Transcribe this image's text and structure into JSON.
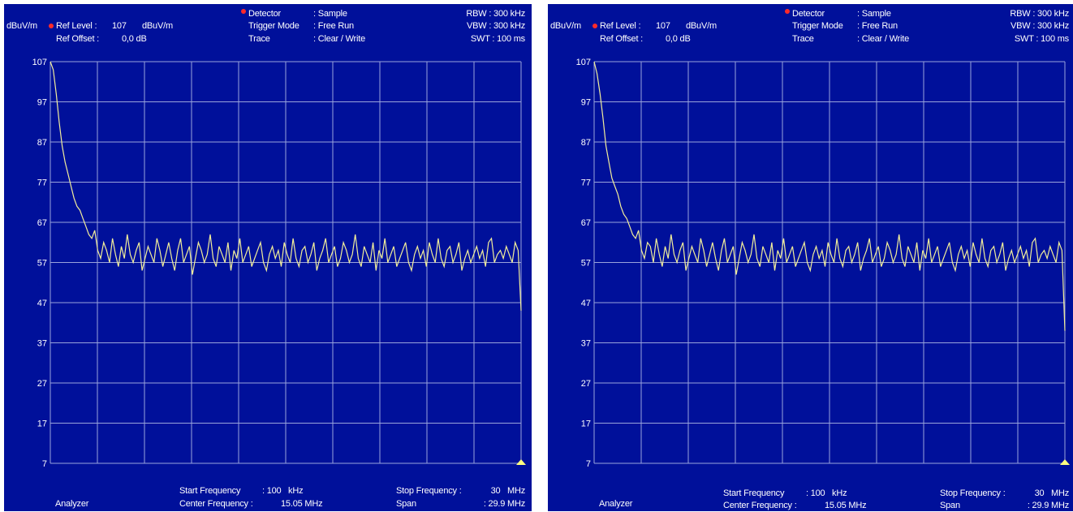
{
  "colors": {
    "background": "#00109a",
    "grid": "#9aa3dc",
    "trace": "#f2ee9a",
    "text": "#ffffff",
    "marker": "#ff2a2a",
    "triangle": "#ffff80"
  },
  "panels": [
    {
      "unit": "dBuV/m",
      "ref_level_label": "Ref Level :",
      "ref_level_value": "107",
      "ref_level_unit": "dBuV/m",
      "ref_offset_label": "Ref Offset :",
      "ref_offset_value": "0,0 dB",
      "detector_label": "Detector",
      "detector_value": ": Sample",
      "trigger_label": "Trigger Mode",
      "trigger_value": ": Free Run",
      "trace_label": "Trace",
      "trace_value": ": Clear / Write",
      "rbw": "RBW : 300 kHz",
      "vbw": "VBW : 300 kHz",
      "swt": "SWT : 100 ms",
      "analyzer": "Analyzer",
      "start_freq_label": "Start Frequency",
      "start_freq_value": ": 100   kHz",
      "center_freq_label": "Center Frequency :",
      "center_freq_value": "15.05 MHz",
      "stop_freq_label": "Stop Frequency :",
      "stop_freq_value": "30   MHz",
      "span_label": "Span",
      "span_value": ": 29.9 MHz"
    },
    {
      "unit": "dBuV/m",
      "ref_level_label": "Ref Level :",
      "ref_level_value": "107",
      "ref_level_unit": "dBuV/m",
      "ref_offset_label": "Ref Offset :",
      "ref_offset_value": "0,0 dB",
      "detector_label": "Detector",
      "detector_value": ": Sample",
      "trigger_label": "Trigger Mode",
      "trigger_value": ": Free Run",
      "trace_label": "Trace",
      "trace_value": ": Clear / Write",
      "rbw": "RBW : 300 kHz",
      "vbw": "VBW : 300 kHz",
      "swt": "SWT : 100 ms",
      "analyzer": "Analyzer",
      "start_freq_label": "Start Frequency",
      "start_freq_value": ": 100   kHz",
      "center_freq_label": "Center Frequency :",
      "center_freq_value": "15.05 MHz",
      "stop_freq_label": "Stop Frequency :",
      "stop_freq_value": "30   MHz",
      "span_label": "Span",
      "span_value": ": 29.9 MHz"
    }
  ],
  "chart_data": [
    {
      "type": "line",
      "ylim": [
        7,
        107
      ],
      "xlim": [
        0.1,
        30
      ],
      "x_unit": "MHz",
      "y_ticks": [
        "107",
        "97",
        "87",
        "77",
        "67",
        "57",
        "47",
        "37",
        "27",
        "17",
        "7"
      ],
      "grid": true,
      "series": [
        {
          "values": [
            107,
            105,
            99,
            92,
            86,
            82,
            79,
            76,
            73,
            71,
            70,
            68,
            66,
            64,
            63,
            65,
            60,
            58,
            62,
            60,
            57,
            63,
            59,
            56,
            61,
            58,
            64,
            59,
            57,
            60,
            62,
            55,
            58,
            61,
            59,
            57,
            63,
            60,
            56,
            59,
            62,
            58,
            55,
            60,
            63,
            57,
            59,
            61,
            54,
            58,
            62,
            60,
            57,
            59,
            64,
            58,
            56,
            61,
            59,
            57,
            62,
            55,
            60,
            58,
            63,
            57,
            59,
            61,
            56,
            58,
            60,
            62,
            57,
            55,
            59,
            61,
            58,
            60,
            56,
            62,
            59,
            57,
            63,
            58,
            56,
            60,
            61,
            57,
            59,
            62,
            55,
            58,
            60,
            63,
            57,
            59,
            61,
            56,
            58,
            62,
            60,
            57,
            59,
            64,
            58,
            56,
            61,
            59,
            57,
            62,
            55,
            60,
            58,
            63,
            57,
            59,
            61,
            56,
            58,
            60,
            62,
            57,
            55,
            59,
            61,
            58,
            60,
            56,
            62,
            59,
            57,
            63,
            58,
            56,
            60,
            61,
            57,
            59,
            62,
            55,
            58,
            60,
            57,
            59,
            61,
            58,
            60,
            56,
            62,
            63,
            57,
            59,
            60,
            58,
            61,
            59,
            57,
            62,
            60,
            45
          ]
        }
      ]
    },
    {
      "type": "line",
      "ylim": [
        7,
        107
      ],
      "xlim": [
        0.1,
        30
      ],
      "x_unit": "MHz",
      "y_ticks": [
        "107",
        "97",
        "87",
        "77",
        "67",
        "57",
        "47",
        "37",
        "27",
        "17",
        "7"
      ],
      "grid": true,
      "series": [
        {
          "values": [
            107,
            104,
            99,
            93,
            86,
            82,
            78,
            76,
            74,
            71,
            69,
            68,
            66,
            64,
            63,
            65,
            60,
            58,
            62,
            61,
            57,
            63,
            59,
            56,
            61,
            58,
            64,
            59,
            57,
            60,
            62,
            55,
            58,
            61,
            59,
            57,
            63,
            60,
            56,
            59,
            62,
            58,
            55,
            60,
            63,
            57,
            59,
            61,
            54,
            58,
            62,
            60,
            57,
            59,
            64,
            58,
            56,
            61,
            59,
            57,
            62,
            55,
            60,
            58,
            63,
            57,
            59,
            61,
            56,
            58,
            60,
            62,
            57,
            55,
            59,
            61,
            58,
            60,
            56,
            62,
            59,
            57,
            63,
            58,
            56,
            60,
            61,
            57,
            59,
            62,
            55,
            58,
            60,
            63,
            57,
            59,
            61,
            56,
            58,
            62,
            60,
            57,
            59,
            64,
            58,
            56,
            61,
            59,
            57,
            62,
            55,
            60,
            58,
            63,
            57,
            59,
            61,
            56,
            58,
            60,
            62,
            57,
            55,
            59,
            61,
            58,
            60,
            56,
            62,
            59,
            57,
            63,
            58,
            56,
            60,
            61,
            57,
            59,
            62,
            55,
            58,
            60,
            57,
            59,
            61,
            58,
            60,
            56,
            62,
            63,
            57,
            59,
            60,
            58,
            61,
            59,
            57,
            62,
            60,
            40
          ]
        }
      ]
    }
  ]
}
